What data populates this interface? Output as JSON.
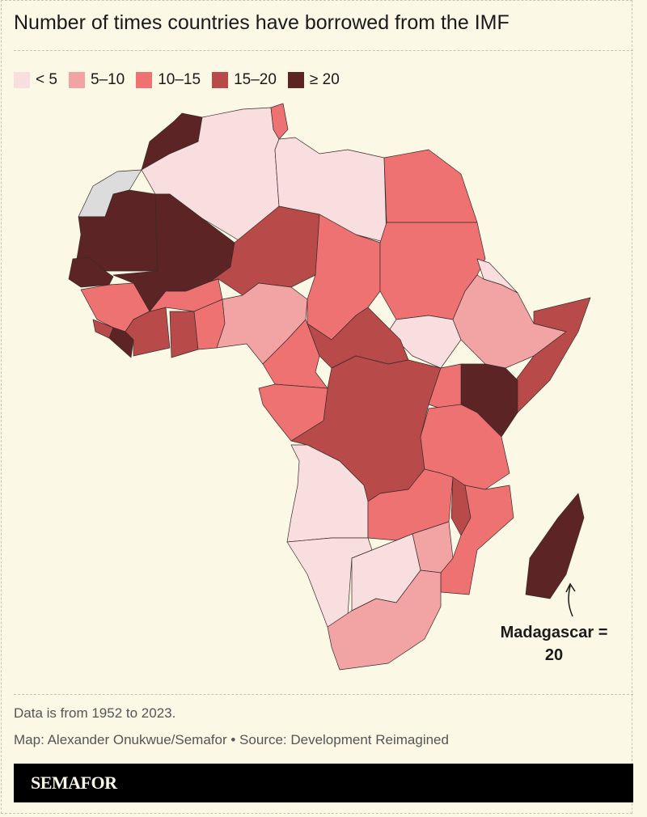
{
  "title": "Number of times countries have borrowed from the IMF",
  "legend": [
    {
      "label": "< 5",
      "color": "#f8dede"
    },
    {
      "label": "5–10",
      "color": "#f2a4a4"
    },
    {
      "label": "10–15",
      "color": "#ef7272"
    },
    {
      "label": "15–20",
      "color": "#b84a4a"
    },
    {
      "label": "≥ 20",
      "color": "#5c2424"
    }
  ],
  "no_data_color": "#dcdcdc",
  "annotation": {
    "line1": "Madagascar =",
    "line2": "20"
  },
  "notes": {
    "data_range": "Data is from 1952 to 2023.",
    "credit": "Map: Alexander Onukwue/Semafor • Source: Development Reimagined"
  },
  "brand": "SEMAFOR"
}
